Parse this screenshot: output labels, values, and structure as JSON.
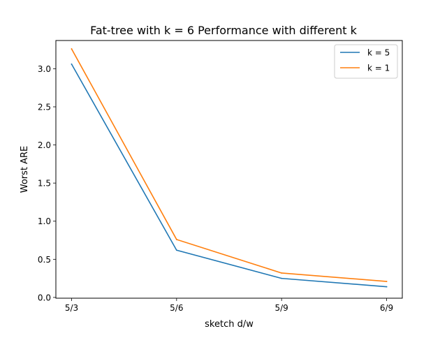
{
  "chart_data": {
    "type": "line",
    "title": "Fat-tree with k = 6 Performance with different k",
    "xlabel": "sketch d/w",
    "ylabel": "Worst ARE",
    "categories": [
      "5/3",
      "5/6",
      "5/9",
      "6/9"
    ],
    "ylim": [
      -0.01,
      3.37
    ],
    "yticks": [
      0.0,
      0.5,
      1.0,
      1.5,
      2.0,
      2.5,
      3.0
    ],
    "ytick_labels": [
      "0.0",
      "0.5",
      "1.0",
      "1.5",
      "2.0",
      "2.5",
      "3.0"
    ],
    "grid": false,
    "legend_position": "top-right",
    "series": [
      {
        "name": "k = 5",
        "color": "#1f77b4",
        "values": [
          3.06,
          0.62,
          0.25,
          0.14
        ]
      },
      {
        "name": "k = 1",
        "color": "#ff7f0e",
        "values": [
          3.26,
          0.76,
          0.32,
          0.21
        ]
      }
    ]
  }
}
